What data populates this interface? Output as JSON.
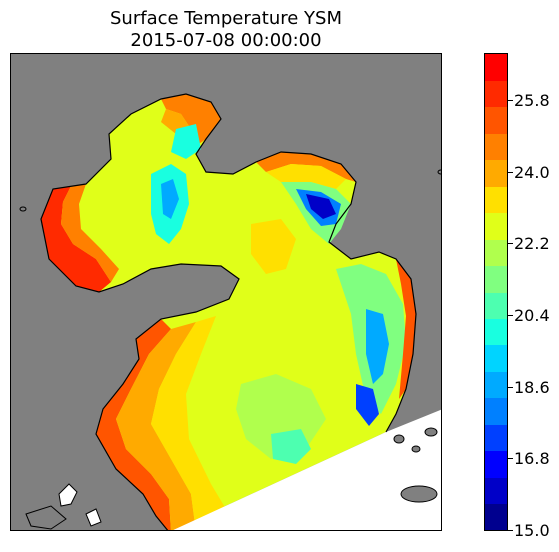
{
  "title": {
    "line1": "Surface Temperature YSM",
    "line2": "2015-07-08 00:00:00"
  },
  "map": {
    "land_color": "#808080",
    "coastline_color": "#000000",
    "no_data_color": "#ffffff"
  },
  "colorbar": {
    "min": 15.0,
    "max": 27.0,
    "ticks": [
      "15.0",
      "16.8",
      "18.6",
      "20.4",
      "22.2",
      "24.0",
      "25.8"
    ],
    "colors": [
      "#00008f",
      "#0000c8",
      "#0000ff",
      "#0040ff",
      "#0080ff",
      "#00aaff",
      "#00d4ff",
      "#19ffe0",
      "#4dffb0",
      "#80ff80",
      "#b0ff4d",
      "#e0ff19",
      "#ffe000",
      "#ffaa00",
      "#ff8000",
      "#ff5500",
      "#ff2a00",
      "#ff0000"
    ]
  }
}
